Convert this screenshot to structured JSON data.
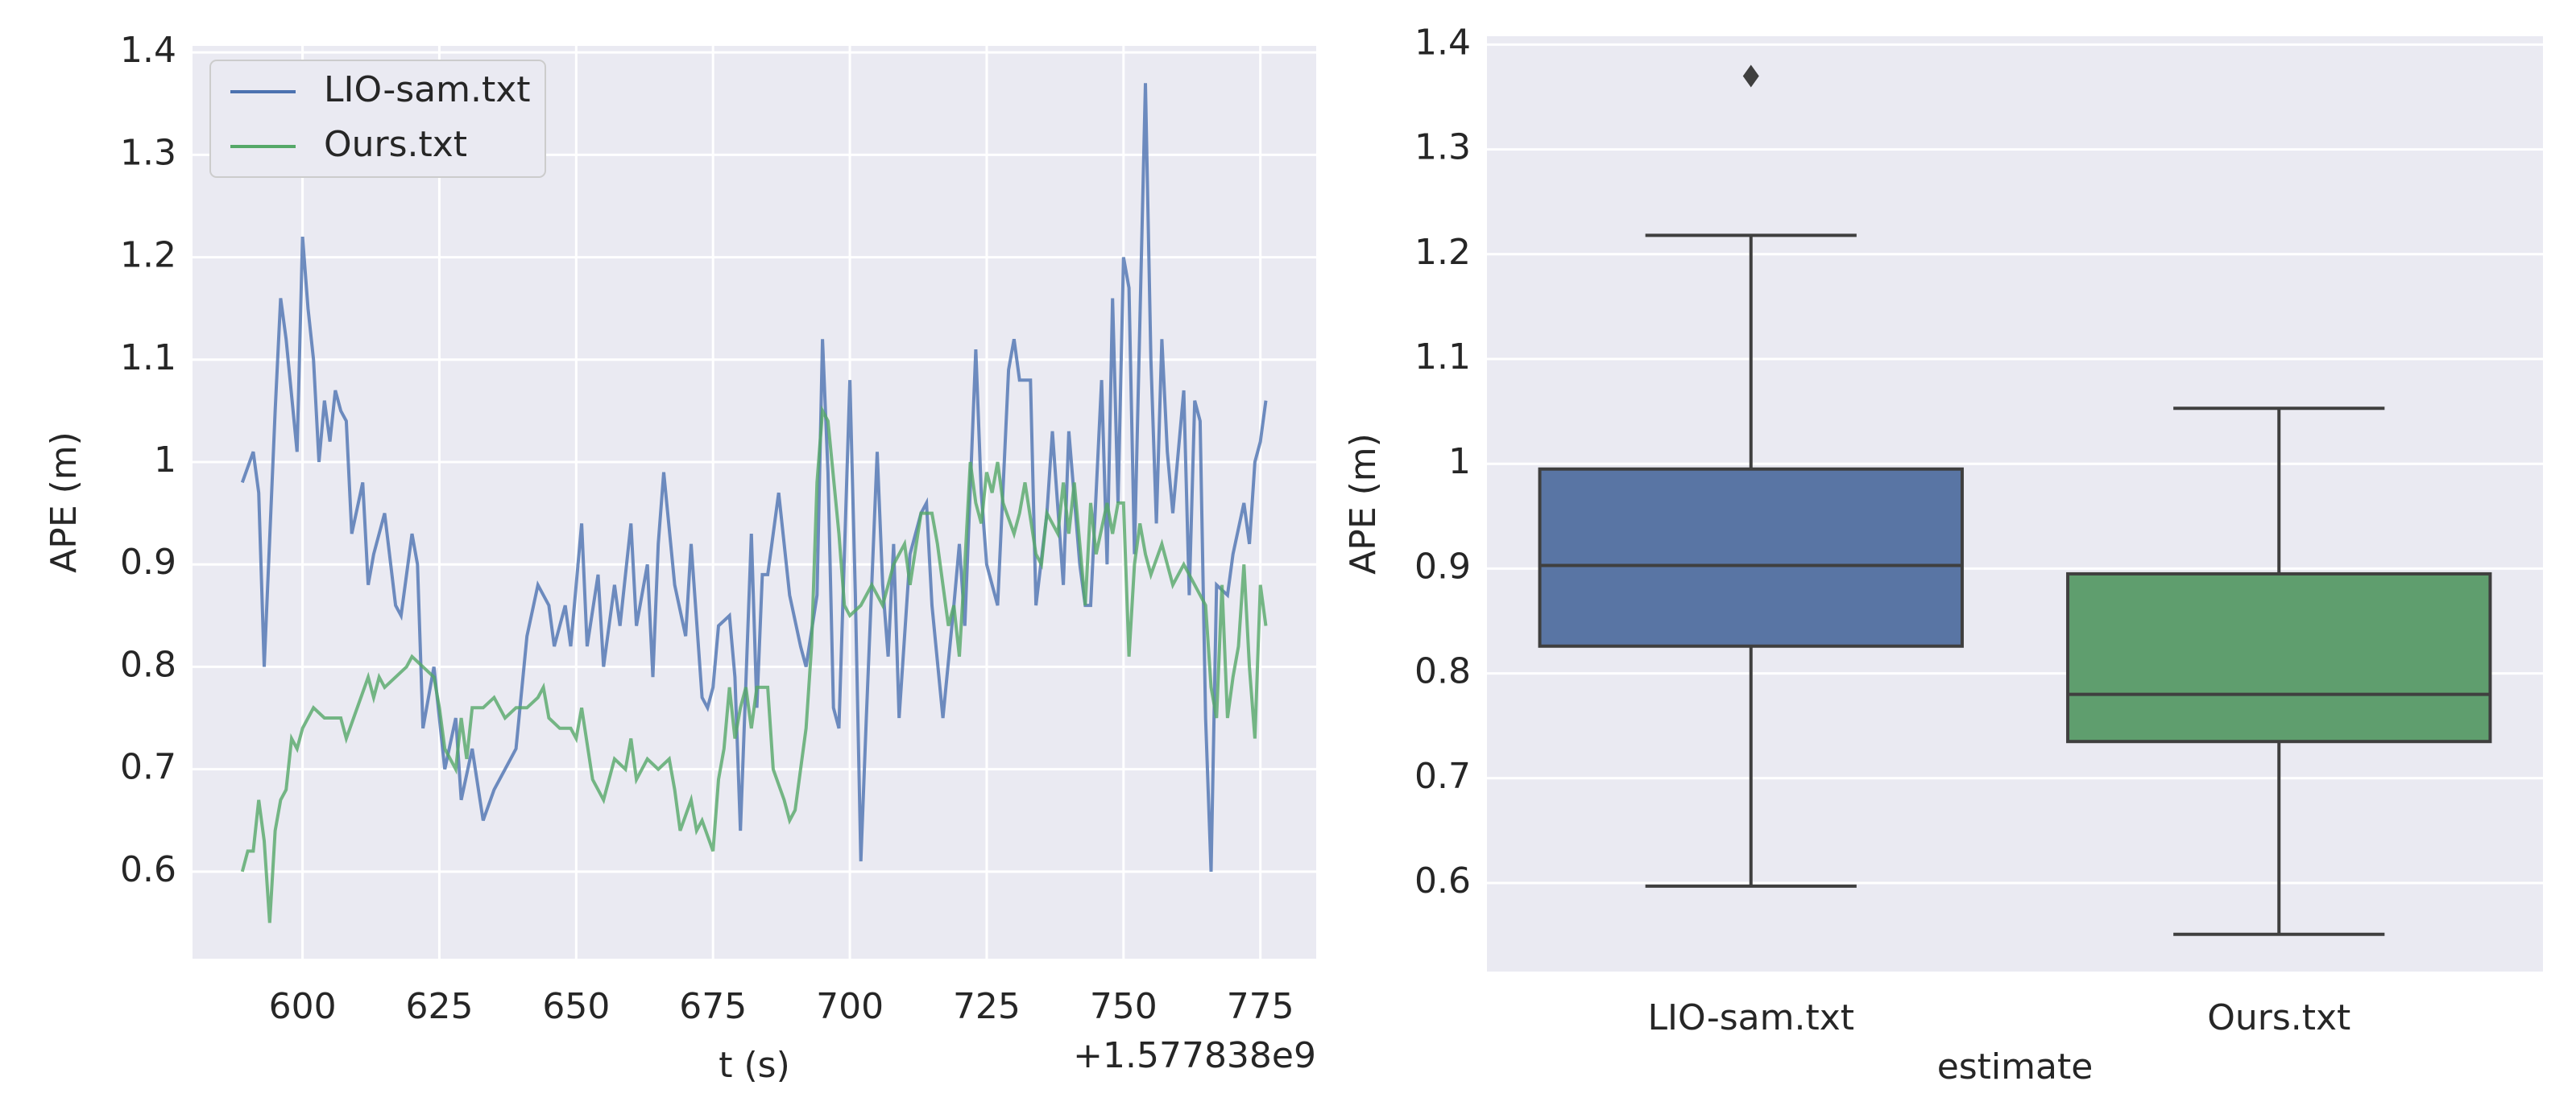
{
  "chart_data": [
    {
      "type": "line",
      "xlabel": "t (s)",
      "ylabel": "APE (m)",
      "x_offset_label": "+1.577838e9",
      "xlim": [
        579.9,
        785.2
      ],
      "ylim": [
        0.515,
        1.4064
      ],
      "xticks": [
        600,
        625,
        650,
        675,
        700,
        725,
        750,
        775
      ],
      "yticks": [
        0.6,
        0.7,
        0.8,
        0.9,
        1.0,
        1.1,
        1.2,
        1.3,
        1.4
      ],
      "grid": "both",
      "legend": "upper left",
      "series": [
        {
          "name": "LIO-sam.txt",
          "color": "#4c72b0",
          "x": [
            589,
            591,
            592,
            593,
            595,
            596,
            597,
            599,
            600,
            601,
            602,
            603,
            604,
            605,
            606,
            607,
            608,
            609,
            611,
            612,
            613,
            615,
            617,
            618,
            620,
            621,
            622,
            624,
            626,
            628,
            629,
            631,
            633,
            635,
            637,
            639,
            641,
            643,
            645,
            646,
            648,
            649,
            651,
            652,
            654,
            655,
            657,
            658,
            660,
            661,
            663,
            664,
            665,
            666,
            668,
            670,
            671,
            673,
            674,
            675,
            676,
            678,
            679,
            680,
            682,
            683,
            684,
            685,
            687,
            689,
            691,
            692,
            694,
            695,
            696,
            697,
            698,
            700,
            701,
            702,
            703,
            705,
            706,
            707,
            708,
            709,
            711,
            713,
            714,
            715,
            717,
            719,
            720,
            721,
            723,
            724,
            725,
            727,
            729,
            730,
            731,
            733,
            734,
            736,
            737,
            739,
            740,
            742,
            743,
            744,
            746,
            747,
            748,
            749,
            750,
            751,
            752,
            754,
            755,
            756,
            757,
            758,
            759,
            761,
            762,
            763,
            764,
            765,
            766,
            767,
            769,
            770,
            772,
            773,
            774,
            775,
            776
          ],
          "values": [
            0.98,
            1.01,
            0.97,
            0.8,
            1.05,
            1.16,
            1.12,
            1.01,
            1.22,
            1.15,
            1.1,
            1.0,
            1.06,
            1.02,
            1.07,
            1.05,
            1.04,
            0.93,
            0.98,
            0.88,
            0.91,
            0.95,
            0.86,
            0.85,
            0.93,
            0.9,
            0.74,
            0.8,
            0.7,
            0.75,
            0.67,
            0.72,
            0.65,
            0.68,
            0.7,
            0.72,
            0.83,
            0.88,
            0.86,
            0.82,
            0.86,
            0.82,
            0.94,
            0.82,
            0.89,
            0.8,
            0.88,
            0.84,
            0.94,
            0.84,
            0.9,
            0.79,
            0.92,
            0.99,
            0.88,
            0.83,
            0.92,
            0.77,
            0.76,
            0.78,
            0.84,
            0.85,
            0.79,
            0.64,
            0.93,
            0.76,
            0.89,
            0.89,
            0.97,
            0.87,
            0.82,
            0.8,
            0.87,
            1.12,
            0.99,
            0.76,
            0.74,
            1.08,
            0.87,
            0.61,
            0.75,
            1.01,
            0.88,
            0.81,
            0.92,
            0.75,
            0.91,
            0.95,
            0.96,
            0.86,
            0.75,
            0.86,
            0.92,
            0.84,
            1.11,
            0.97,
            0.9,
            0.86,
            1.09,
            1.12,
            1.08,
            1.08,
            0.86,
            0.95,
            1.03,
            0.88,
            1.03,
            0.9,
            0.86,
            0.86,
            1.08,
            0.9,
            1.16,
            0.96,
            1.2,
            1.17,
            0.91,
            1.37,
            1.1,
            0.94,
            1.12,
            1.01,
            0.95,
            1.07,
            0.87,
            1.06,
            1.04,
            0.75,
            0.6,
            0.88,
            0.87,
            0.91,
            0.96,
            0.92,
            1.0,
            1.02,
            1.06
          ]
        },
        {
          "name": "Ours.txt",
          "color": "#55a868",
          "x": [
            589,
            590,
            591,
            592,
            593,
            594,
            595,
            596,
            597,
            598,
            599,
            600,
            602,
            604,
            606,
            607,
            608,
            610,
            612,
            613,
            614,
            615,
            617,
            619,
            620,
            622,
            624,
            625,
            626,
            628,
            629,
            630,
            631,
            633,
            635,
            637,
            639,
            641,
            643,
            644,
            645,
            647,
            649,
            650,
            651,
            653,
            655,
            657,
            659,
            660,
            661,
            663,
            665,
            667,
            668,
            669,
            671,
            672,
            673,
            675,
            676,
            677,
            678,
            679,
            680,
            681,
            682,
            683,
            685,
            686,
            688,
            689,
            690,
            692,
            693,
            694,
            695,
            696,
            698,
            699,
            700,
            702,
            704,
            706,
            708,
            710,
            711,
            713,
            715,
            716,
            717,
            718,
            719,
            720,
            721,
            722,
            723,
            724,
            725,
            726,
            727,
            728,
            730,
            731,
            732,
            734,
            735,
            736,
            738,
            739,
            740,
            741,
            743,
            744,
            745,
            747,
            748,
            749,
            750,
            751,
            752,
            753,
            754,
            755,
            757,
            759,
            761,
            763,
            765,
            766,
            767,
            768,
            769,
            770,
            771,
            772,
            773,
            774,
            775,
            776
          ],
          "values": [
            0.6,
            0.62,
            0.62,
            0.67,
            0.63,
            0.55,
            0.64,
            0.67,
            0.68,
            0.73,
            0.72,
            0.74,
            0.76,
            0.75,
            0.75,
            0.75,
            0.73,
            0.76,
            0.79,
            0.77,
            0.79,
            0.78,
            0.79,
            0.8,
            0.81,
            0.8,
            0.79,
            0.76,
            0.72,
            0.7,
            0.75,
            0.71,
            0.76,
            0.76,
            0.77,
            0.75,
            0.76,
            0.76,
            0.77,
            0.78,
            0.75,
            0.74,
            0.74,
            0.73,
            0.76,
            0.69,
            0.67,
            0.71,
            0.7,
            0.73,
            0.69,
            0.71,
            0.7,
            0.71,
            0.68,
            0.64,
            0.67,
            0.64,
            0.65,
            0.62,
            0.69,
            0.72,
            0.78,
            0.73,
            0.76,
            0.78,
            0.74,
            0.78,
            0.78,
            0.7,
            0.67,
            0.65,
            0.66,
            0.74,
            0.82,
            0.98,
            1.05,
            1.04,
            0.93,
            0.86,
            0.85,
            0.86,
            0.88,
            0.86,
            0.9,
            0.92,
            0.88,
            0.95,
            0.95,
            0.92,
            0.88,
            0.84,
            0.86,
            0.81,
            0.9,
            1.0,
            0.96,
            0.94,
            0.99,
            0.97,
            1.0,
            0.96,
            0.93,
            0.95,
            0.98,
            0.91,
            0.9,
            0.95,
            0.93,
            0.98,
            0.93,
            0.98,
            0.86,
            0.96,
            0.91,
            0.96,
            0.93,
            0.96,
            0.96,
            0.81,
            0.9,
            0.94,
            0.91,
            0.89,
            0.92,
            0.88,
            0.9,
            0.88,
            0.86,
            0.78,
            0.75,
            0.88,
            0.75,
            0.79,
            0.82,
            0.9,
            0.8,
            0.73,
            0.88,
            0.84
          ]
        }
      ]
    },
    {
      "type": "box",
      "xlabel": "estimate",
      "ylabel": "APE (m)",
      "ylim": [
        0.5155,
        1.408
      ],
      "yticks": [
        0.6,
        0.7,
        0.8,
        0.9,
        1.0,
        1.1,
        1.2,
        1.3,
        1.4
      ],
      "grid": "y",
      "boxes": [
        {
          "name": "LIO-sam.txt",
          "color": "#5975a4",
          "whislo": 0.597,
          "q1": 0.826,
          "med": 0.903,
          "q3": 0.995,
          "whishi": 1.218,
          "fliers": [
            1.37
          ]
        },
        {
          "name": "Ours.txt",
          "color": "#5f9e6e",
          "whislo": 0.551,
          "q1": 0.735,
          "med": 0.78,
          "q3": 0.895,
          "whishi": 1.053,
          "fliers": []
        }
      ]
    }
  ]
}
